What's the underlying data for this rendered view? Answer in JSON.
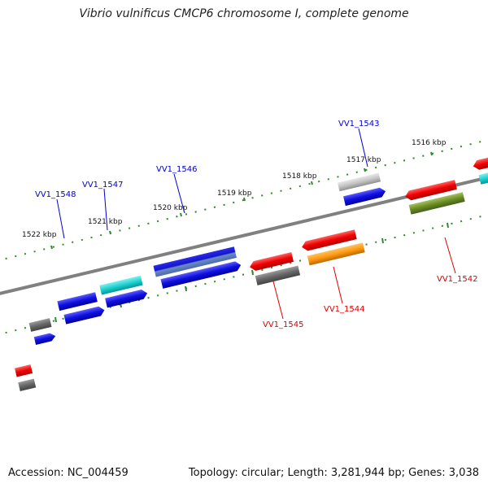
{
  "title": "Vibrio vulnificus CMCP6 chromosome I, complete genome",
  "accession": "Accession: NC_004459",
  "topology": "Topology: circular; Length: 3,281,944 bp; Genes: 3,038",
  "colors": {
    "forward_gene_label": "#0000cc",
    "reverse_gene_label": "#dd0000",
    "tick_color": "#2e8b2e",
    "backbone": "#808080"
  },
  "scale_labels": [
    "1522 kbp",
    "1521 kbp",
    "1520 kbp",
    "1519 kbp",
    "1518 kbp",
    "1517 kbp",
    "1516 kbp"
  ],
  "gene_labels_forward": [
    "VV1_1548",
    "VV1_1547",
    "VV1_1546",
    "VV1_1543"
  ],
  "gene_labels_reverse": [
    "VV1_1545",
    "VV1_1544",
    "VV1_1542"
  ]
}
